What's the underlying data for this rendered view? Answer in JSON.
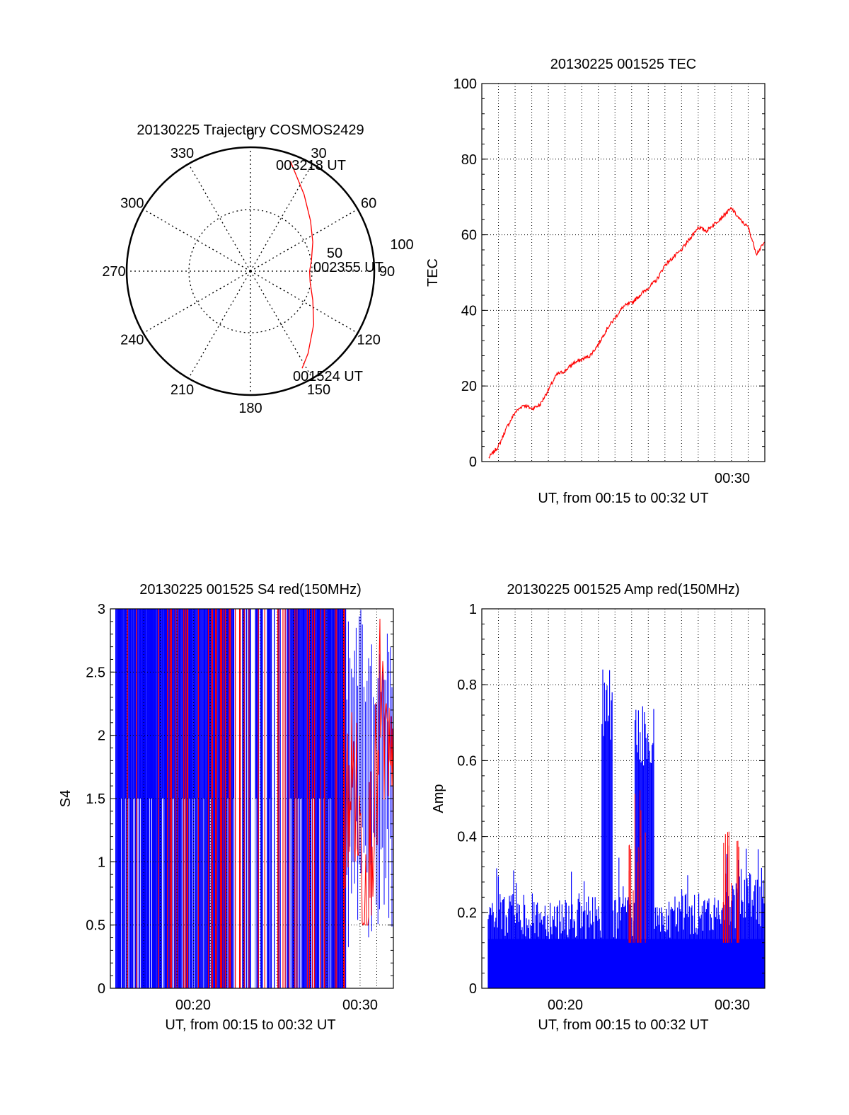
{
  "colors": {
    "red": "#ff0000",
    "blue": "#0000ff",
    "black": "#000000",
    "grid": "#000000"
  },
  "chart_data": [
    {
      "id": "trajectory",
      "type": "polar",
      "title": "20130225 Trajectory COSMOS2429",
      "azimuth_labels": [
        "0",
        "30",
        "60",
        "90",
        "120",
        "150",
        "180",
        "210",
        "240",
        "270",
        "300",
        "330"
      ],
      "radial_labels": [
        "50",
        "100"
      ],
      "point_labels": [
        {
          "text": "003218 UT",
          "az": 20,
          "el": 5
        },
        {
          "text": "002355 UT",
          "az": 90,
          "el": 47
        },
        {
          "text": "001524 UT",
          "az": 152,
          "el": 10
        }
      ],
      "trajectory": {
        "az": [
          20,
          35,
          50,
          65,
          80,
          90,
          100,
          115,
          130,
          145,
          152
        ],
        "el": [
          5,
          22,
          33,
          40,
          45,
          47,
          46,
          40,
          30,
          17,
          10
        ]
      },
      "grid": true
    },
    {
      "id": "tec",
      "type": "line",
      "title": "20130225 001525 TEC",
      "xlabel": "UT, from 00:15 to 00:32 UT",
      "ylabel": "TEC",
      "xlim": [
        "00:15",
        "00:32"
      ],
      "ylim": [
        0,
        100
      ],
      "yticks": [
        "0",
        "20",
        "40",
        "60",
        "80",
        "100"
      ],
      "xticks": [
        "00:30"
      ],
      "grid": true,
      "series": [
        {
          "color": "red",
          "x": [
            "00:15:25",
            "00:16:00",
            "00:16:30",
            "00:17:00",
            "00:17:30",
            "00:18:00",
            "00:18:30",
            "00:19:00",
            "00:19:30",
            "00:20:00",
            "00:20:30",
            "00:21:00",
            "00:21:30",
            "00:22:00",
            "00:22:30",
            "00:23:00",
            "00:23:30",
            "00:24:00",
            "00:24:30",
            "00:25:00",
            "00:25:30",
            "00:26:00",
            "00:26:30",
            "00:27:00",
            "00:27:30",
            "00:28:00",
            "00:28:30",
            "00:29:00",
            "00:29:30",
            "00:30:00",
            "00:30:30",
            "00:31:00",
            "00:31:30",
            "00:32:00"
          ],
          "y": [
            1,
            4,
            9,
            13,
            15,
            14,
            15,
            19,
            23,
            24,
            26,
            27,
            28,
            31,
            35,
            38,
            41,
            42,
            44,
            46,
            48,
            52,
            54,
            56,
            59,
            62,
            61,
            63,
            65,
            67,
            64,
            62,
            55,
            58
          ]
        }
      ]
    },
    {
      "id": "s4",
      "type": "line",
      "title": "20130225 001525 S4 red(150MHz)",
      "xlabel": "UT, from 00:15 to 00:32 UT",
      "ylabel": "S4",
      "xlim": [
        "00:15",
        "00:32"
      ],
      "ylim": [
        0,
        3
      ],
      "yticks": [
        "0",
        "0.5",
        "1",
        "1.5",
        "2",
        "2.5",
        "3"
      ],
      "xticks": [
        "00:20",
        "00:30"
      ],
      "grid": true,
      "series": [
        {
          "color": "blue",
          "description": "dense spikes saturating 0 to 3 until about 00:29"
        },
        {
          "color": "red",
          "x": [
            "00:28:30",
            "00:29:00",
            "00:29:30",
            "00:30:00",
            "00:30:30",
            "00:31:00",
            "00:31:30",
            "00:32:00"
          ],
          "y": [
            1.6,
            1.2,
            0.9,
            0.6,
            1.4,
            1.0,
            2.3,
            1.5
          ]
        }
      ]
    },
    {
      "id": "amp",
      "type": "line",
      "title": "20130225 001525 Amp red(150MHz)",
      "xlabel": "UT, from 00:15 to 00:32 UT",
      "ylabel": "Amp",
      "xlim": [
        "00:15",
        "00:32"
      ],
      "ylim": [
        0,
        1
      ],
      "yticks": [
        "0",
        "0.2",
        "0.4",
        "0.6",
        "0.8",
        "1"
      ],
      "xticks": [
        "00:20",
        "00:30"
      ],
      "grid": true,
      "series": [
        {
          "color": "blue",
          "peaks": [
            {
              "x": "00:22:30",
              "y": 0.85
            },
            {
              "x": "00:24:30",
              "y": 0.77
            },
            {
              "x": "00:25:00",
              "y": 0.74
            }
          ]
        },
        {
          "color": "red",
          "peaks": [
            {
              "x": "00:24:20",
              "y": 0.56
            },
            {
              "x": "00:30:00",
              "y": 0.45
            }
          ]
        }
      ]
    }
  ]
}
